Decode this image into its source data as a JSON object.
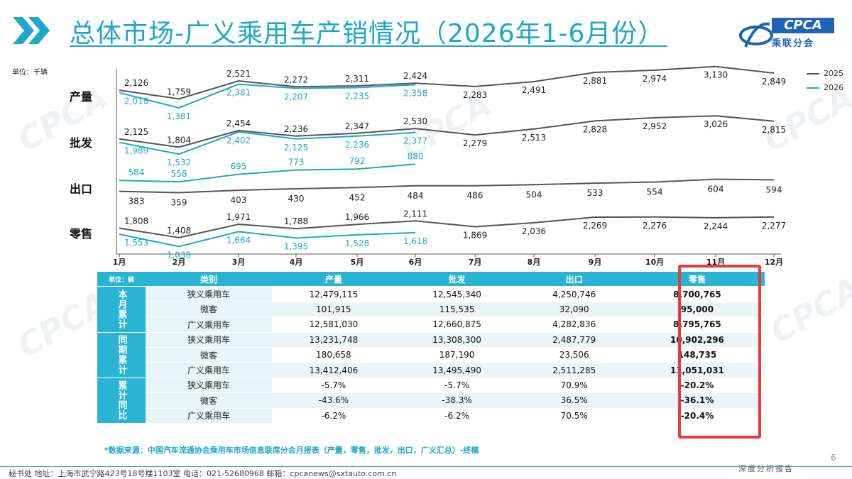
{
  "header": {
    "title": "总体市场-广义乘用车产销情况（2026年1-6月份）",
    "logo_text": "CPCA",
    "logo_cn": "乘联分会"
  },
  "chart_unit": "单位：千辆",
  "chart_data": {
    "type": "line",
    "categories": [
      "1月",
      "2月",
      "3月",
      "4月",
      "5月",
      "6月",
      "7月",
      "8月",
      "9月",
      "10月",
      "11月",
      "12月"
    ],
    "legend": [
      "2025",
      "2026"
    ],
    "legend_position": "top-right",
    "panels": [
      {
        "label": "产量",
        "series": [
          {
            "name": "2025",
            "values": [
              2126,
              1759,
              2521,
              2272,
              2311,
              2424,
              2283,
              2491,
              2881,
              2974,
              3130,
              2849
            ]
          },
          {
            "name": "2026",
            "values": [
              2018,
              1381,
              2381,
              2207,
              2235,
              2358
            ]
          }
        ]
      },
      {
        "label": "批发",
        "series": [
          {
            "name": "2025",
            "values": [
              2125,
              1804,
              2454,
              2236,
              2347,
              2530,
              2279,
              2513,
              2828,
              2952,
              3026,
              2815
            ]
          },
          {
            "name": "2026",
            "values": [
              1989,
              1532,
              2402,
              2125,
              2236,
              2377
            ]
          }
        ]
      },
      {
        "label": "出口",
        "series": [
          {
            "name": "2025",
            "values": [
              383,
              359,
              403,
              430,
              452,
              484,
              486,
              504,
              533,
              554,
              604,
              594
            ]
          },
          {
            "name": "2026",
            "values": [
              584,
              558,
              695,
              773,
              792,
              880
            ]
          }
        ]
      },
      {
        "label": "零售",
        "series": [
          {
            "name": "2025",
            "values": [
              1808,
              1408,
              1971,
              1788,
              1966,
              2111,
              1869,
              2036,
              2269,
              2276,
              2244,
              2277
            ]
          },
          {
            "name": "2026",
            "values": [
              1553,
              1038,
              1664,
              1395,
              1528,
              1618
            ]
          }
        ]
      }
    ],
    "colors": {
      "2025": "#555555",
      "2026": "#1ea7c8"
    }
  },
  "table": {
    "unit": "单位：辆",
    "headers": [
      "类别",
      "产量",
      "批发",
      "出口",
      "零售"
    ],
    "groups": [
      {
        "label": "本月累计",
        "rows": [
          {
            "cat": "狭义乘用车",
            "vals": [
              "12,479,115",
              "12,545,340",
              "4,250,746",
              "8,700,765"
            ]
          },
          {
            "cat": "微客",
            "vals": [
              "101,915",
              "115,535",
              "32,090",
              "95,000"
            ]
          },
          {
            "cat": "广义乘用车",
            "vals": [
              "12,581,030",
              "12,660,875",
              "4,282,836",
              "8,795,765"
            ]
          }
        ]
      },
      {
        "label": "同期累计",
        "rows": [
          {
            "cat": "狭义乘用车",
            "vals": [
              "13,231,748",
              "13,308,300",
              "2,487,779",
              "10,902,296"
            ]
          },
          {
            "cat": "微客",
            "vals": [
              "180,658",
              "187,190",
              "23,506",
              "148,735"
            ]
          },
          {
            "cat": "广义乘用车",
            "vals": [
              "13,412,406",
              "13,495,490",
              "2,511,285",
              "11,051,031"
            ]
          }
        ]
      },
      {
        "label": "累计同比",
        "rows": [
          {
            "cat": "狭义乘用车",
            "vals": [
              "-5.7%",
              "-5.7%",
              "70.9%",
              "-20.2%"
            ]
          },
          {
            "cat": "微客",
            "vals": [
              "-43.6%",
              "-38.3%",
              "36.5%",
              "-36.1%"
            ]
          },
          {
            "cat": "广义乘用车",
            "vals": [
              "-6.2%",
              "-6.2%",
              "70.5%",
              "-20.4%"
            ]
          }
        ]
      }
    ]
  },
  "source": "*数据来源：中国汽车流通协会乘用车市场信息联席分会月报表（产量，零售，批发，出口，广义汇总）-终稿",
  "page_number": "6",
  "footer": {
    "text": "秘书处  地址：上海市武宁路423号18号楼1103室  电话：021-52680968  邮箱：cpcanews@sxtauto.com.cn",
    "right": "深度分析报告"
  }
}
